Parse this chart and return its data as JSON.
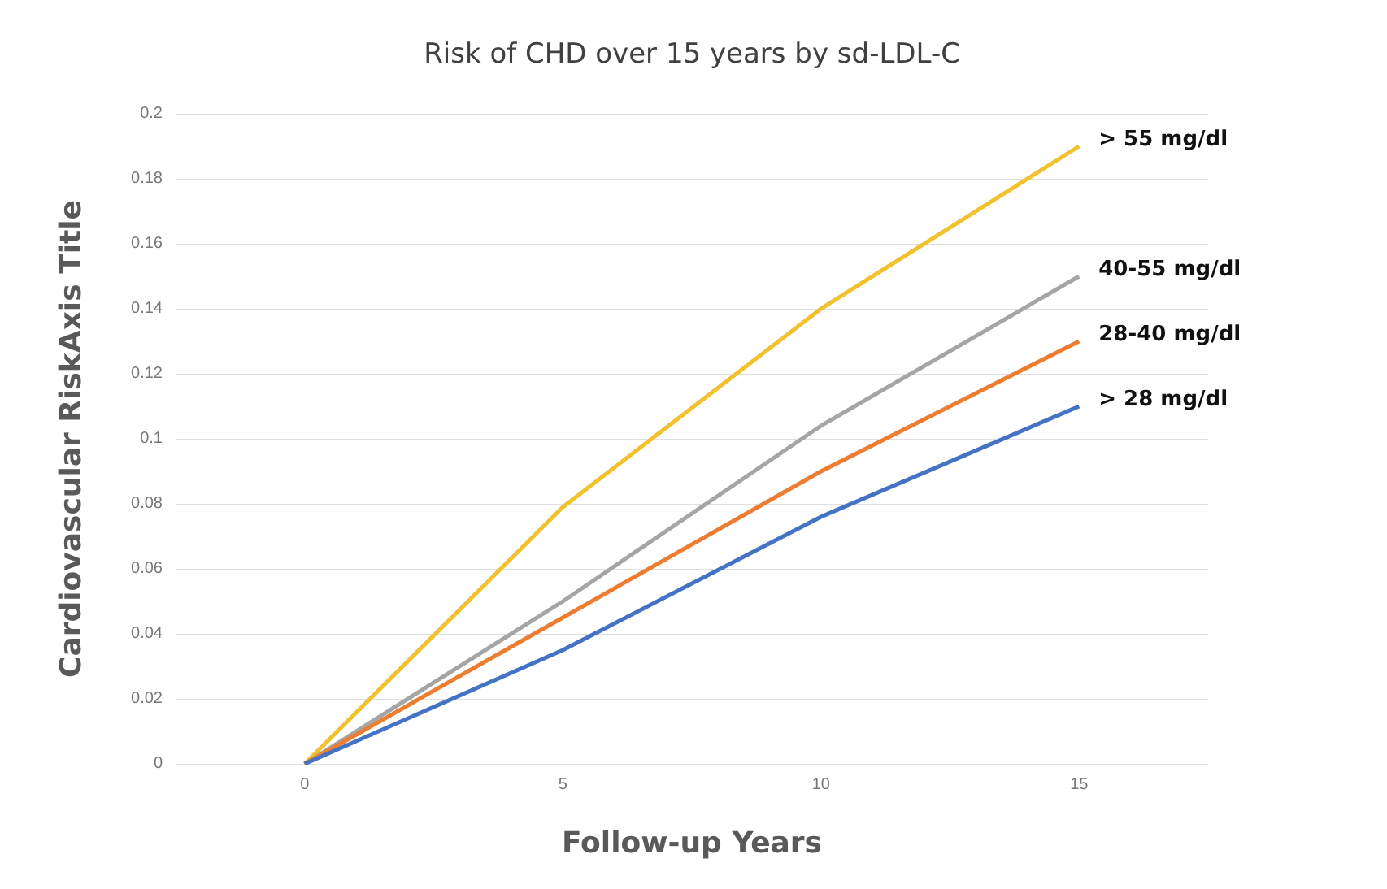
{
  "chart_data": {
    "type": "line",
    "title": "Risk of CHD over 15 years by sd-LDL-C",
    "xlabel": "Follow-up Years",
    "ylabel": "Cardiovascular RiskAxis Title",
    "categories": [
      "0",
      "5",
      "10",
      "15"
    ],
    "series": [
      {
        "name": "> 55 mg/dl",
        "color": "#f2c12e",
        "values": [
          0,
          0.079,
          0.14,
          0.19
        ]
      },
      {
        "name": "40-55 mg/dl",
        "color": "#a5a5a5",
        "values": [
          0,
          0.05,
          0.104,
          0.15
        ]
      },
      {
        "name": "28-40 mg/dl",
        "color": "#ed7d31",
        "values": [
          0,
          0.045,
          0.09,
          0.13
        ]
      },
      {
        "name": "> 28 mg/dl",
        "color": "#4472c4",
        "values": [
          0,
          0.035,
          0.076,
          0.11
        ]
      }
    ],
    "ylim": [
      0,
      0.2
    ],
    "yticks": [
      0,
      0.02,
      0.04,
      0.06,
      0.08,
      0.1,
      0.12,
      0.14,
      0.16,
      0.18,
      0.2
    ],
    "grid": "y",
    "legend": false,
    "marker": "none",
    "line_style": "solid"
  }
}
